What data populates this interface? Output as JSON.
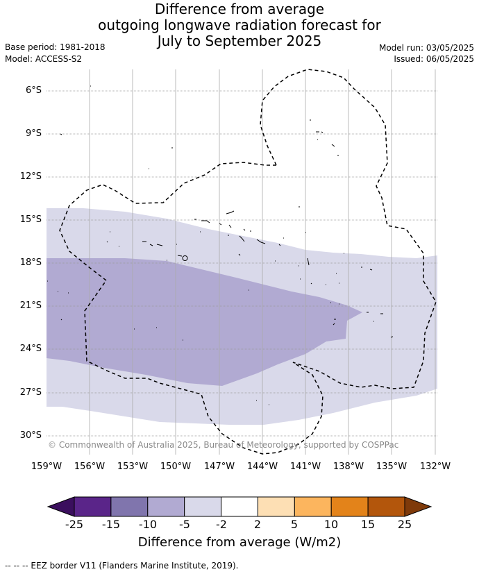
{
  "title": {
    "line1": "Difference from average",
    "line2": "outgoing longwave radiation forecast for",
    "line3": "July to September 2025"
  },
  "meta": {
    "base_period": "Base period: 1981-2018",
    "model": "Model: ACCESS-S2",
    "model_run": "Model run: 03/05/2025",
    "issued": "Issued: 06/05/2025"
  },
  "copyright": "© Commonwealth of Australia 2025, Bureau of Meteorology, supported by COSPPac",
  "axes": {
    "lat_labels": [
      "6°S",
      "9°S",
      "12°S",
      "15°S",
      "18°S",
      "21°S",
      "24°S",
      "27°S",
      "30°S"
    ],
    "lon_labels": [
      "159°W",
      "156°W",
      "153°W",
      "150°W",
      "147°W",
      "144°W",
      "141°W",
      "138°W",
      "135°W",
      "132°W"
    ]
  },
  "colorbar": {
    "label": "Difference from average (W/m2)",
    "ticks": [
      "-25",
      "-15",
      "-10",
      "-5",
      "-2",
      "2",
      "5",
      "10",
      "15",
      "25"
    ],
    "colors": [
      "#5a2589",
      "#8075ad",
      "#b1aad2",
      "#d9d9ea",
      "#ffffff",
      "#fddfb4",
      "#fcb55e",
      "#e3831a",
      "#b3560c"
    ],
    "under_color": "#3b0f5e",
    "over_color": "#7f3a0a"
  },
  "footer": "-- -- -- EEZ border V11 (Flanders Marine Institute, 2019)."
}
